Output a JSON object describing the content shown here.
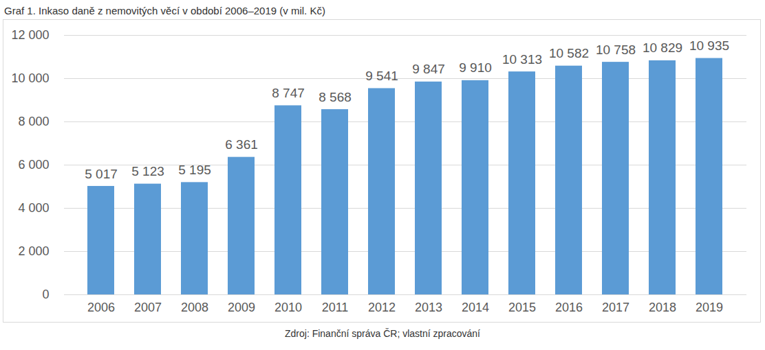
{
  "chart_data": {
    "type": "bar",
    "title": "Graf 1. Inkaso daně z nemovitých věcí v období 2006–2019 (v mil. Kč)",
    "caption": "Zdroj: Finanční správa ČR; vlastní zpracování",
    "categories": [
      "2006",
      "2007",
      "2008",
      "2009",
      "2010",
      "2011",
      "2012",
      "2013",
      "2014",
      "2015",
      "2016",
      "2017",
      "2018",
      "2019"
    ],
    "values": [
      5017,
      5123,
      5195,
      6361,
      8747,
      8568,
      9541,
      9847,
      9910,
      10313,
      10582,
      10758,
      10829,
      10935
    ],
    "value_labels": [
      "5 017",
      "5 123",
      "5 195",
      "6 361",
      "8 747",
      "8 568",
      "9 541",
      "9 847",
      "9 910",
      "10 313",
      "10 582",
      "10 758",
      "10 829",
      "10 935"
    ],
    "color": "#5b9bd5",
    "ylim": [
      0,
      12000
    ],
    "yticks": [
      0,
      {
        "value": 2000,
        "label": "2 000"
      },
      {
        "value": 4000,
        "label": "4 000"
      },
      {
        "value": 6000,
        "label": "6 000"
      },
      {
        "value": 8000,
        "label": "8 000"
      },
      {
        "value": 10000,
        "label": "10 000"
      },
      {
        "value": 12000,
        "label": "12 000"
      }
    ],
    "grid": true,
    "data_labels": true
  }
}
